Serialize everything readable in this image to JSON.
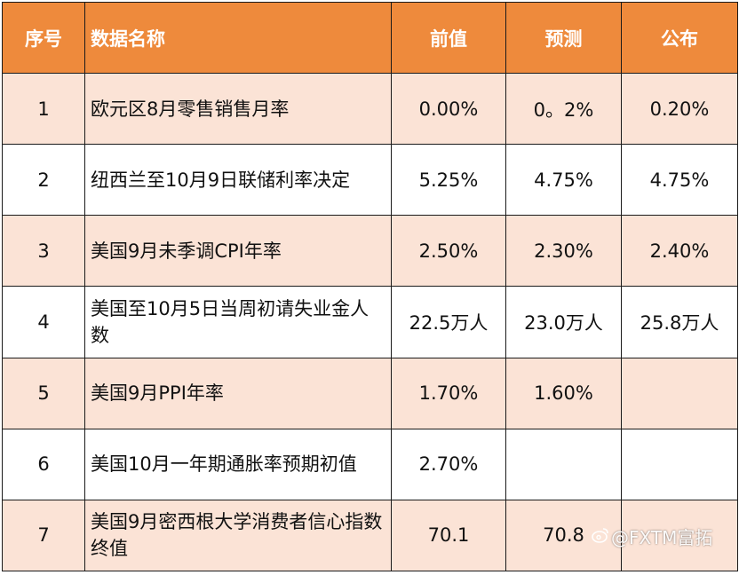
{
  "header": {
    "index": "序号",
    "name": "数据名称",
    "previous": "前值",
    "forecast": "预测",
    "actual": "公布"
  },
  "rows": [
    {
      "index": "1",
      "name": "欧元区8月零售销售月率",
      "previous": "0.00%",
      "forecast": "0。2%",
      "actual": "0.20%"
    },
    {
      "index": "2",
      "name": "纽西兰至10月9日联储利率决定",
      "previous": "5.25%",
      "forecast": "4.75%",
      "actual": "4.75%"
    },
    {
      "index": "3",
      "name": "美国9月未季调CPI年率",
      "previous": "2.50%",
      "forecast": "2.30%",
      "actual": "2.40%"
    },
    {
      "index": "4",
      "name": "美国至10月5日当周初请失业金人数",
      "previous": "22.5万人",
      "forecast": "23.0万人",
      "actual": "25.8万人"
    },
    {
      "index": "5",
      "name": "美国9月PPI年率",
      "previous": "1.70%",
      "forecast": "1.60%",
      "actual": ""
    },
    {
      "index": "6",
      "name": "美国10月一年期通胀率预期初值",
      "previous": "2.70%",
      "forecast": "",
      "actual": ""
    },
    {
      "index": "7",
      "name": "美国9月密西根大学消费者信心指数终值",
      "previous": "70.1",
      "forecast": "70.8",
      "actual": ""
    }
  ],
  "watermark": {
    "icon": "weibo-logo-icon",
    "text": "@FXTM富拓"
  }
}
